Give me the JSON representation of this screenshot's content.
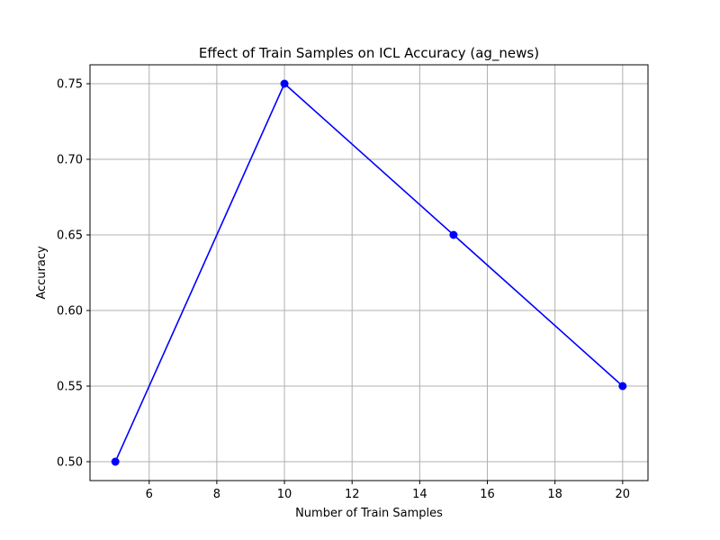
{
  "chart_data": {
    "type": "line",
    "title": "Effect of Train Samples on ICL Accuracy (ag_news)",
    "xlabel": "Number of Train Samples",
    "ylabel": "Accuracy",
    "x": [
      5,
      10,
      15,
      20
    ],
    "series": [
      {
        "values": [
          0.5,
          0.75,
          0.65,
          0.55
        ],
        "color": "#0000ff",
        "marker": "circle"
      }
    ],
    "xlim": [
      4.25,
      20.75
    ],
    "ylim": [
      0.4875,
      0.7625
    ],
    "xticks": [
      6,
      8,
      10,
      12,
      14,
      16,
      18,
      20
    ],
    "xtick_labels": [
      "6",
      "8",
      "10",
      "12",
      "14",
      "16",
      "18",
      "20"
    ],
    "yticks": [
      0.5,
      0.55,
      0.6,
      0.65,
      0.7,
      0.75
    ],
    "ytick_labels": [
      "0.50",
      "0.55",
      "0.60",
      "0.65",
      "0.70",
      "0.75"
    ],
    "grid": true,
    "grid_color": "#b0b0b0"
  }
}
